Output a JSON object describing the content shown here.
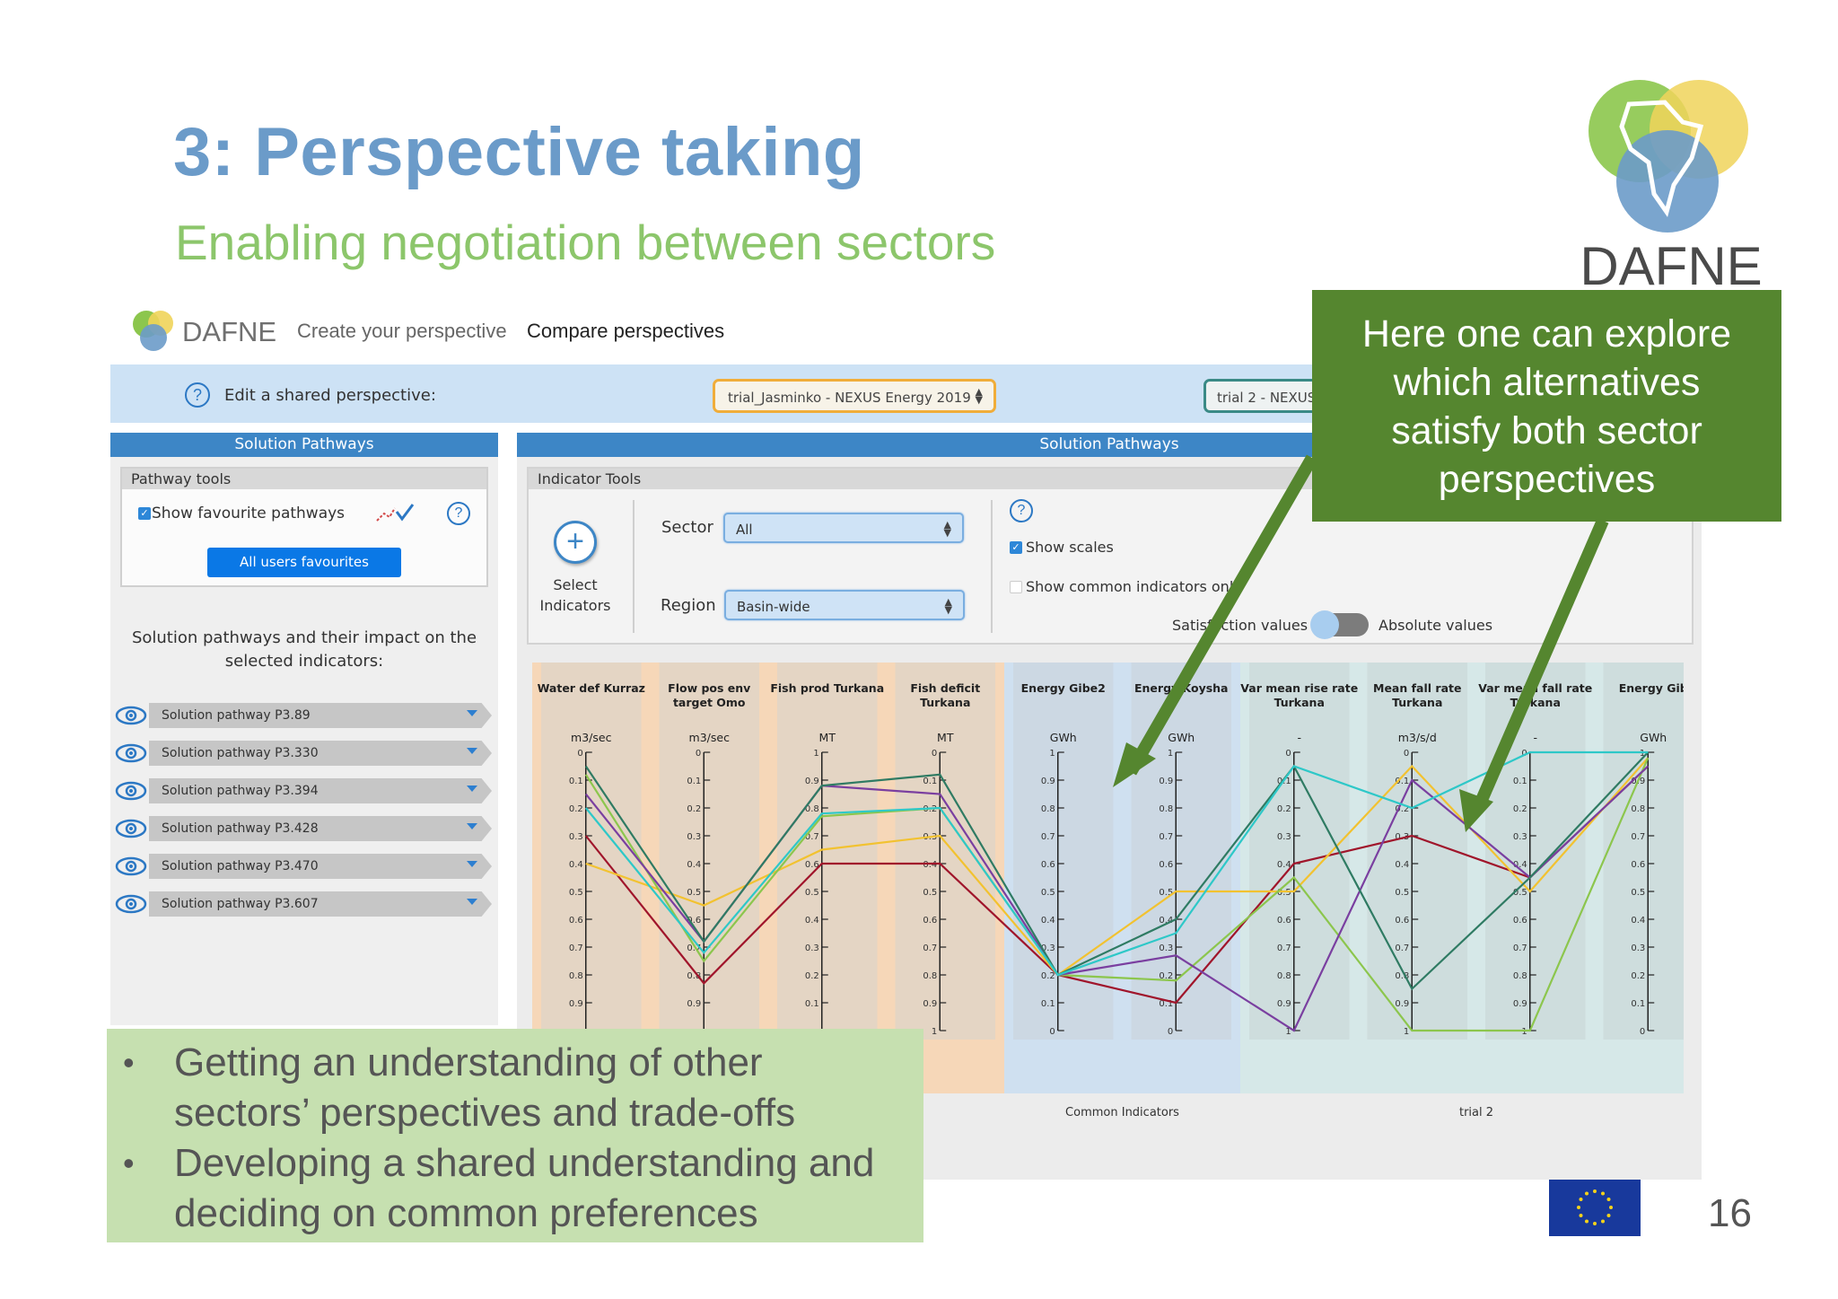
{
  "slide": {
    "title": "3: Perspective taking",
    "subtitle": "Enabling negotiation between sectors",
    "logo_text": "DAFNE",
    "page_number": "16"
  },
  "app": {
    "logo_text": "DAFNE",
    "nav": {
      "create": "Create your perspective",
      "compare": "Compare perspectives"
    },
    "shared_bar": {
      "label": "Edit a shared perspective:",
      "perspective_1": "trial_Jasminko - NEXUS Energy 2019",
      "perspective_2": "trial 2 - NEXUS"
    },
    "left_panel": {
      "header": "Solution Pathways",
      "tools_title": "Pathway tools",
      "show_favourites": "Show favourite pathways",
      "show_favourites_checked": true,
      "favourites_button": "All users favourites",
      "intro": "Solution pathways and their impact on the selected indicators:",
      "pathways": [
        {
          "label": "Solution pathway P3.89"
        },
        {
          "label": "Solution pathway P3.330"
        },
        {
          "label": "Solution pathway P3.394"
        },
        {
          "label": "Solution pathway P3.428"
        },
        {
          "label": "Solution pathway P3.470"
        },
        {
          "label": "Solution pathway P3.607"
        }
      ]
    },
    "right_panel": {
      "header": "Solution Pathways",
      "tools_title": "Indicator Tools",
      "select_indicators_1": "Select",
      "select_indicators_2": "Indicators",
      "sector_label": "Sector",
      "sector_value": "All",
      "region_label": "Region",
      "region_value": "Basin-wide",
      "show_scales": "Show scales",
      "show_scales_checked": true,
      "show_common": "Show common indicators onl",
      "show_common_checked": false,
      "satisfaction_label": "Satisfaction values",
      "absolute_label": "Absolute values"
    }
  },
  "chart_data": {
    "type": "parallel-coordinates",
    "axes": [
      {
        "name": "Water def Kurraz",
        "unit": "m3/sec",
        "ticks": [
          "0",
          "0.1",
          "0.2",
          "0.3",
          "0.4",
          "0.5",
          "0.6",
          "0.7",
          "0.8",
          "0.9"
        ],
        "group": "trial_Jasminko"
      },
      {
        "name": "Flow pos env target Omo",
        "unit": "m3/sec",
        "ticks": [
          "0",
          "0.1",
          "0.2",
          "0.3",
          "0.4",
          "0.5",
          "0.6",
          "0.7",
          "0.8",
          "0.9"
        ],
        "group": "trial_Jasminko"
      },
      {
        "name": "Fish prod Turkana",
        "unit": "MT",
        "ticks": [
          "1",
          "0.9",
          "0.8",
          "0.7",
          "0.6",
          "0.5",
          "0.4",
          "0.3",
          "0.2",
          "0.1"
        ],
        "group": "trial_Jasminko"
      },
      {
        "name": "Fish deficit Turkana",
        "unit": "MT",
        "ticks": [
          "0",
          "0.1",
          "0.2",
          "0.3",
          "0.4",
          "0.5",
          "0.6",
          "0.7",
          "0.8",
          "0.9",
          "1"
        ],
        "group": "trial_Jasminko"
      },
      {
        "name": "Energy Gibe2",
        "unit": "GWh",
        "ticks": [
          "1",
          "0.9",
          "0.8",
          "0.7",
          "0.6",
          "0.5",
          "0.4",
          "0.3",
          "0.2",
          "0.1",
          "0"
        ],
        "group": "common"
      },
      {
        "name": "Energy Koysha",
        "unit": "GWh",
        "ticks": [
          "1",
          "0.9",
          "0.8",
          "0.7",
          "0.6",
          "0.5",
          "0.4",
          "0.3",
          "0.2",
          "0.1",
          "0"
        ],
        "group": "common"
      },
      {
        "name": "Var mean rise rate Turkana",
        "unit": "-",
        "ticks": [
          "0",
          "0.1",
          "0.2",
          "0.3",
          "0.4",
          "0.5",
          "0.6",
          "0.7",
          "0.8",
          "0.9",
          "1"
        ],
        "group": "trial2"
      },
      {
        "name": "Mean fall rate Turkana",
        "unit": "m3/s/d",
        "ticks": [
          "0",
          "0.1",
          "0.2",
          "0.3",
          "0.4",
          "0.5",
          "0.6",
          "0.7",
          "0.8",
          "0.9",
          "1"
        ],
        "group": "trial2"
      },
      {
        "name": "Var mean fall rate Turkana",
        "unit": "-",
        "ticks": [
          "0",
          "0.1",
          "0.2",
          "0.3",
          "0.4",
          "0.5",
          "0.6",
          "0.7",
          "0.8",
          "0.9",
          "1"
        ],
        "group": "trial2"
      },
      {
        "name": "Energy Gib",
        "unit": "GWh",
        "ticks": [
          "1",
          "0.9",
          "0.8",
          "0.7",
          "0.6",
          "0.5",
          "0.4",
          "0.3",
          "0.2",
          "0.1",
          "0"
        ],
        "group": "trial2"
      }
    ],
    "group_labels": {
      "common": "Common Indicators",
      "trial2": "trial 2"
    },
    "series": [
      {
        "color": "#a0152b",
        "values": [
          0.3,
          0.83,
          0.4,
          0.4,
          0.8,
          0.9,
          0.4,
          0.3,
          0.45,
          0.05
        ]
      },
      {
        "color": "#f2c230",
        "values": [
          0.4,
          0.55,
          0.35,
          0.3,
          0.8,
          0.5,
          0.5,
          0.05,
          0.5,
          0.02
        ]
      },
      {
        "color": "#8cc64d",
        "values": [
          0.08,
          0.75,
          0.23,
          0.2,
          0.8,
          0.82,
          0.45,
          1.0,
          1.0,
          0.02
        ]
      },
      {
        "color": "#7a3fa0",
        "values": [
          0.15,
          0.68,
          0.12,
          0.15,
          0.8,
          0.73,
          1.0,
          0.1,
          0.45,
          0.05
        ]
      },
      {
        "color": "#2f7b63",
        "values": [
          0.05,
          0.68,
          0.12,
          0.08,
          0.8,
          0.6,
          0.05,
          0.85,
          0.45,
          0.0
        ]
      },
      {
        "color": "#2ec8c8",
        "values": [
          0.2,
          0.72,
          0.22,
          0.2,
          0.8,
          0.65,
          0.05,
          0.2,
          0.0,
          0.0
        ]
      }
    ]
  },
  "callout": {
    "lines": [
      "Here one can explore",
      "which alternatives",
      "satisfy both sector",
      "perspectives"
    ]
  },
  "bullets": [
    {
      "line1": "Getting an understanding of other",
      "line2": "sectors’ perspectives and trade-offs"
    },
    {
      "line1": "Developing a shared understanding and",
      "line2": "deciding on common preferences"
    }
  ]
}
